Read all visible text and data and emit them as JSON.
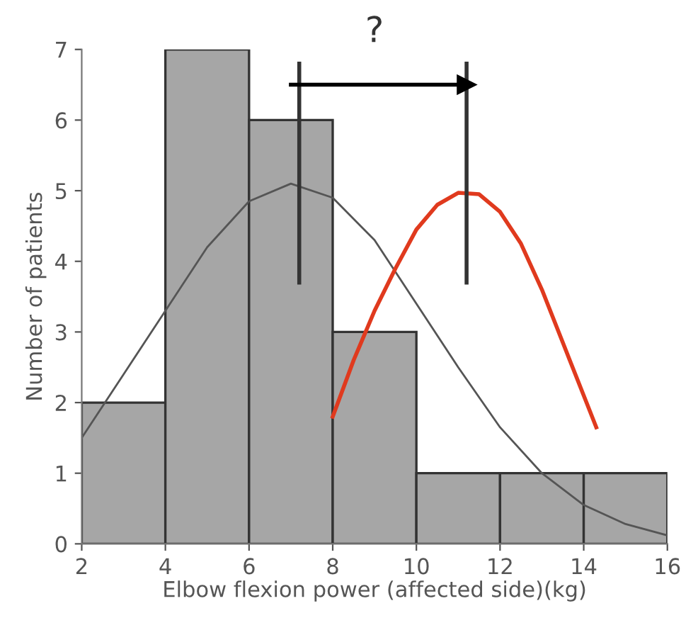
{
  "chart_data": {
    "type": "histogram",
    "xlabel": "Elbow flexion power (affected side)(kg)",
    "ylabel": "Number of patients",
    "bins": [
      2,
      4,
      6,
      8,
      10,
      12,
      14,
      16
    ],
    "values": [
      2,
      7,
      6,
      3,
      1,
      1,
      1
    ],
    "color": "#a6a6a6",
    "series": [
      {
        "type": "line",
        "color": "#555555",
        "x": [
          2,
          3,
          4,
          5,
          6,
          7,
          8,
          9,
          10,
          11,
          12,
          13,
          14,
          15,
          16
        ],
        "values": [
          1.5,
          2.4,
          3.3,
          4.2,
          4.85,
          5.1,
          4.9,
          4.3,
          3.4,
          2.5,
          1.65,
          1.0,
          0.55,
          0.28,
          0.12
        ]
      },
      {
        "type": "line",
        "color": "#e03a1e",
        "x": [
          8,
          8.5,
          9,
          9.5,
          10,
          10.5,
          11,
          11.5,
          12,
          12.5,
          13,
          13.5,
          14,
          14.3
        ],
        "values": [
          1.8,
          2.6,
          3.3,
          3.9,
          4.45,
          4.8,
          4.97,
          4.95,
          4.7,
          4.25,
          3.6,
          2.85,
          2.1,
          1.65
        ]
      },
      {
        "type": "line",
        "color": "#333333",
        "x": [
          7.2,
          7.2
        ],
        "values": [
          3.7,
          6.8
        ]
      },
      {
        "type": "line",
        "color": "#333333",
        "x": [
          11.2,
          11.2
        ],
        "values": [
          3.7,
          6.8
        ]
      },
      {
        "type": "line",
        "color": "#000000",
        "marker": "triangle",
        "x": [
          7,
          11.2
        ],
        "values": [
          6.5,
          6.5
        ]
      }
    ],
    "annotations": [
      "?"
    ],
    "xlim": [
      2,
      16
    ],
    "ylim": [
      0,
      7
    ],
    "xticks": [
      2,
      4,
      6,
      8,
      10,
      12,
      14,
      16
    ],
    "yticks": [
      0,
      1,
      2,
      3,
      4,
      5,
      6,
      7
    ],
    "grid": false,
    "legend": false
  }
}
